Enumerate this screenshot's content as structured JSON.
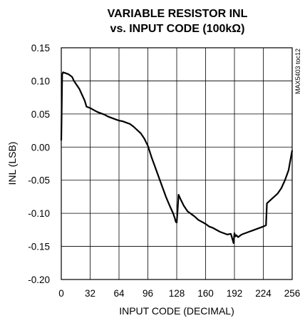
{
  "chart_data": {
    "type": "line",
    "title_line1": "VARIABLE RESISTOR INL",
    "title_line2": "vs. INPUT CODE (100kΩ)",
    "xlabel": "INPUT CODE (DECIMAL)",
    "ylabel": "INL (LSB)",
    "side_tag": "MAX5403 toc12",
    "xlim": [
      0,
      256
    ],
    "ylim": [
      -0.2,
      0.15
    ],
    "x_ticks": [
      0,
      32,
      64,
      96,
      128,
      160,
      192,
      224,
      256
    ],
    "x_tick_labels": [
      "0",
      "32",
      "64",
      "96",
      "128",
      "160",
      "192",
      "224",
      "256"
    ],
    "y_ticks": [
      0.15,
      0.1,
      0.05,
      0.0,
      -0.05,
      -0.1,
      -0.15,
      -0.2
    ],
    "y_tick_labels": [
      "0.15",
      "0.10",
      "0.05",
      "0.00",
      "-0.05",
      "-0.10",
      "-0.15",
      "-0.20"
    ],
    "grid": true,
    "legend": "none",
    "line_color": "#000000",
    "series": [
      {
        "x": [
          0,
          1,
          2,
          4,
          6,
          8,
          10,
          12,
          14,
          16,
          18,
          20,
          22,
          24,
          26,
          28,
          32,
          36,
          40,
          44,
          48,
          52,
          56,
          60,
          64,
          68,
          72,
          76,
          80,
          84,
          88,
          92,
          96,
          100,
          104,
          108,
          112,
          116,
          120,
          124,
          126,
          127,
          128,
          129,
          130,
          132,
          136,
          140,
          144,
          148,
          152,
          156,
          160,
          164,
          168,
          172,
          176,
          180,
          184,
          188,
          190,
          191,
          192,
          193,
          194,
          196,
          200,
          204,
          208,
          212,
          216,
          220,
          224,
          227,
          228,
          232,
          236,
          240,
          244,
          248,
          252,
          254,
          256
        ],
        "y": [
          0.01,
          0.11,
          0.113,
          0.112,
          0.111,
          0.11,
          0.108,
          0.106,
          0.1,
          0.096,
          0.092,
          0.088,
          0.082,
          0.076,
          0.07,
          0.061,
          0.059,
          0.056,
          0.053,
          0.051,
          0.049,
          0.046,
          0.044,
          0.042,
          0.04,
          0.039,
          0.037,
          0.035,
          0.031,
          0.026,
          0.021,
          0.013,
          0.002,
          -0.015,
          -0.03,
          -0.045,
          -0.06,
          -0.075,
          -0.088,
          -0.1,
          -0.108,
          -0.113,
          -0.114,
          -0.095,
          -0.072,
          -0.078,
          -0.089,
          -0.097,
          -0.101,
          -0.105,
          -0.11,
          -0.113,
          -0.116,
          -0.12,
          -0.122,
          -0.125,
          -0.128,
          -0.13,
          -0.132,
          -0.131,
          -0.14,
          -0.145,
          -0.13,
          -0.135,
          -0.133,
          -0.136,
          -0.132,
          -0.13,
          -0.128,
          -0.126,
          -0.124,
          -0.122,
          -0.12,
          -0.118,
          -0.085,
          -0.08,
          -0.075,
          -0.07,
          -0.062,
          -0.05,
          -0.035,
          -0.02,
          -0.005
        ]
      }
    ]
  }
}
